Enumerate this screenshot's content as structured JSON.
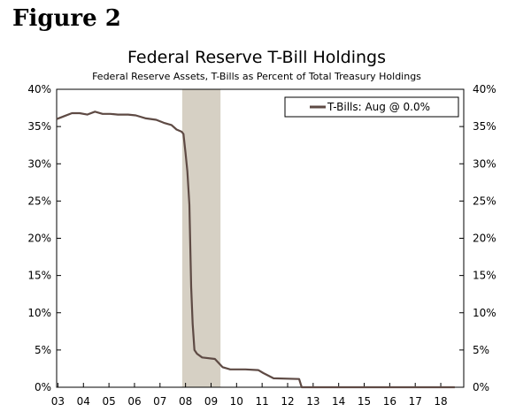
{
  "figure_label": "Figure 2",
  "chart_data": {
    "type": "line",
    "title": "Federal Reserve T-Bill Holdings",
    "subtitle": "Federal Reserve Assets, T-Bills as Percent of Total Treasury Holdings",
    "xlabel": "",
    "ylabel": "",
    "xlim": [
      2003.0,
      2018.95
    ],
    "ylim": [
      0,
      40
    ],
    "x_ticks": [
      {
        "x": 2003.05,
        "label": "03"
      },
      {
        "x": 2004.05,
        "label": "04"
      },
      {
        "x": 2005.05,
        "label": "05"
      },
      {
        "x": 2006.05,
        "label": "06"
      },
      {
        "x": 2007.05,
        "label": "07"
      },
      {
        "x": 2008.05,
        "label": "08"
      },
      {
        "x": 2009.05,
        "label": "09"
      },
      {
        "x": 2010.05,
        "label": "10"
      },
      {
        "x": 2011.05,
        "label": "11"
      },
      {
        "x": 2012.05,
        "label": "12"
      },
      {
        "x": 2013.05,
        "label": "13"
      },
      {
        "x": 2014.05,
        "label": "14"
      },
      {
        "x": 2015.05,
        "label": "15"
      },
      {
        "x": 2016.05,
        "label": "16"
      },
      {
        "x": 2017.05,
        "label": "17"
      },
      {
        "x": 2018.05,
        "label": "18"
      }
    ],
    "y_ticks": [
      "0%",
      "5%",
      "10%",
      "15%",
      "20%",
      "25%",
      "30%",
      "35%",
      "40%"
    ],
    "recession_shading": [
      2007.92,
      2009.42
    ],
    "grid": false,
    "legend_placement": "top-right",
    "series": [
      {
        "name": "T-Bills: Aug @ 0.0%",
        "color": "#5e4a44",
        "points": [
          [
            2003.0,
            36.0
          ],
          [
            2003.3,
            36.4
          ],
          [
            2003.6,
            36.8
          ],
          [
            2003.9,
            36.8
          ],
          [
            2004.2,
            36.6
          ],
          [
            2004.5,
            37.0
          ],
          [
            2004.8,
            36.7
          ],
          [
            2005.1,
            36.7
          ],
          [
            2005.4,
            36.6
          ],
          [
            2005.8,
            36.6
          ],
          [
            2006.1,
            36.5
          ],
          [
            2006.5,
            36.1
          ],
          [
            2006.9,
            35.9
          ],
          [
            2007.2,
            35.5
          ],
          [
            2007.5,
            35.2
          ],
          [
            2007.7,
            34.6
          ],
          [
            2007.9,
            34.3
          ],
          [
            2007.97,
            34.0
          ],
          [
            2008.05,
            31.5
          ],
          [
            2008.12,
            29.0
          ],
          [
            2008.2,
            24.5
          ],
          [
            2008.27,
            13.5
          ],
          [
            2008.33,
            8.5
          ],
          [
            2008.4,
            5.0
          ],
          [
            2008.5,
            4.5
          ],
          [
            2008.7,
            4.0
          ],
          [
            2009.2,
            3.8
          ],
          [
            2009.5,
            2.7
          ],
          [
            2009.8,
            2.4
          ],
          [
            2010.4,
            2.4
          ],
          [
            2010.9,
            2.3
          ],
          [
            2011.1,
            1.9
          ],
          [
            2011.5,
            1.2
          ],
          [
            2012.5,
            1.1
          ],
          [
            2012.6,
            0.0
          ],
          [
            2018.6,
            0.0
          ]
        ]
      }
    ]
  }
}
